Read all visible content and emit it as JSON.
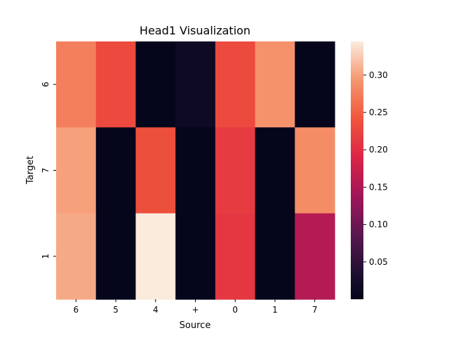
{
  "chart_data": {
    "type": "heatmap",
    "title": "Head1 Visualization",
    "xlabel": "Source",
    "ylabel": "Target",
    "x_categories": [
      "6",
      "5",
      "4",
      "+",
      "0",
      "1",
      "7"
    ],
    "y_categories": [
      "6",
      "7",
      "1"
    ],
    "values": [
      [
        0.275,
        0.23,
        0.002,
        0.015,
        0.23,
        0.29,
        0.002
      ],
      [
        0.3,
        0.002,
        0.235,
        0.002,
        0.215,
        0.002,
        0.285
      ],
      [
        0.305,
        0.002,
        0.345,
        0.002,
        0.21,
        0.002,
        0.155
      ]
    ],
    "colorbar": {
      "vmin": 0.0,
      "vmax": 0.345,
      "ticks": [
        0.05,
        0.1,
        0.15,
        0.2,
        0.25,
        0.3
      ],
      "tick_labels": [
        "0.05",
        "0.10",
        "0.15",
        "0.20",
        "0.25",
        "0.30"
      ]
    },
    "colormap": "rocket",
    "grid": false,
    "legend": "colorbar-right"
  }
}
